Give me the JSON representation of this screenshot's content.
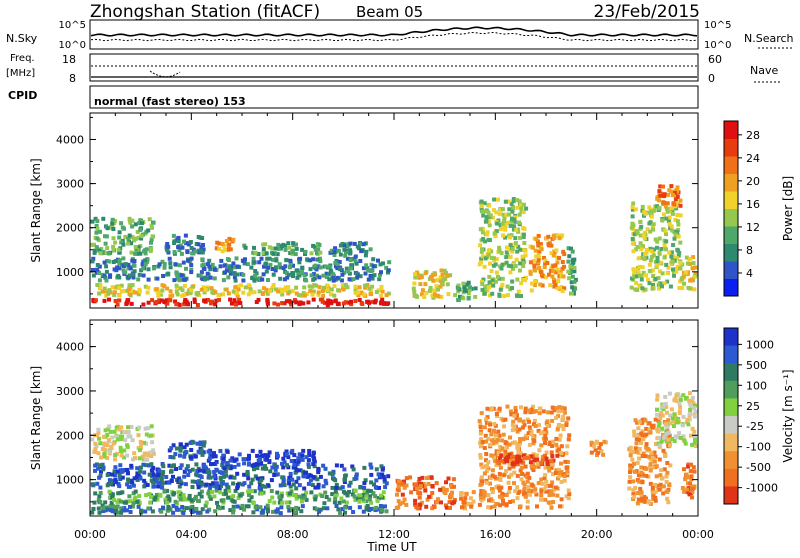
{
  "header": {
    "station": "Zhongshan Station (fitACF)",
    "beam": "Beam 05",
    "date": "23/Feb/2015"
  },
  "aux_panels": {
    "nsky_label": "N.Sky",
    "nsearch_label": "N.Search",
    "nsky_ticks": [
      "10^5",
      "10^0"
    ],
    "nsearch_ticks": [
      "10^5",
      "10^0"
    ],
    "freq_label_1": "Freq.",
    "freq_label_2": "[MHz]",
    "freq_ticks": [
      "18",
      "8"
    ],
    "nave_label": "Nave",
    "nave_ticks": [
      "60",
      "0"
    ],
    "cpid_label": "CPID",
    "cpid_text": "normal (fast stereo) 153"
  },
  "chart_data": [
    {
      "type": "heatmap",
      "title": "Power",
      "xlabel": "Time UT",
      "ylabel": "Slant Range [km]",
      "x_ticks": [
        "00:00",
        "04:00",
        "08:00",
        "12:00",
        "16:00",
        "20:00",
        "00:00"
      ],
      "y_ticks": [
        "1000",
        "2000",
        "3000",
        "4000"
      ],
      "xlim_hours": [
        0,
        24
      ],
      "ylim_km": [
        180,
        4600
      ],
      "colorbar": {
        "label": "Power [dB]",
        "ticks": [
          "4",
          "8",
          "12",
          "16",
          "20",
          "24",
          "28"
        ],
        "colors": [
          "#0a1ff0",
          "#2f54c8",
          "#2e8a6e",
          "#4fa86a",
          "#96c850",
          "#f0d22a",
          "#f0a020",
          "#f07018",
          "#e83c10",
          "#e01010"
        ]
      },
      "blobs": [
        {
          "t0": 0.0,
          "t1": 11.9,
          "r0": 200,
          "r1": 420,
          "level": 9
        },
        {
          "t0": 0.2,
          "t1": 11.9,
          "r0": 400,
          "r1": 750,
          "level": 5
        },
        {
          "t0": 0.0,
          "t1": 11.9,
          "r0": 750,
          "r1": 1350,
          "level": 2
        },
        {
          "t0": 0.0,
          "t1": 2.6,
          "r0": 1350,
          "r1": 2250,
          "level": 3
        },
        {
          "t0": 2.8,
          "t1": 4.6,
          "r0": 1350,
          "r1": 1900,
          "level": 2
        },
        {
          "t0": 4.9,
          "t1": 5.8,
          "r0": 1400,
          "r1": 1800,
          "level": 6
        },
        {
          "t0": 6.0,
          "t1": 9.2,
          "r0": 1350,
          "r1": 1700,
          "level": 3
        },
        {
          "t0": 9.3,
          "t1": 11.2,
          "r0": 1300,
          "r1": 1700,
          "level": 2
        },
        {
          "t0": 12.7,
          "t1": 14.3,
          "r0": 350,
          "r1": 1100,
          "level": 5
        },
        {
          "t0": 14.3,
          "t1": 15.4,
          "r0": 300,
          "r1": 800,
          "level": 3
        },
        {
          "t0": 15.3,
          "t1": 17.3,
          "r0": 400,
          "r1": 2700,
          "level": 4
        },
        {
          "t0": 17.3,
          "t1": 18.8,
          "r0": 500,
          "r1": 1900,
          "level": 6
        },
        {
          "t0": 18.8,
          "t1": 19.3,
          "r0": 400,
          "r1": 1600,
          "level": 3
        },
        {
          "t0": 21.3,
          "t1": 23.4,
          "r0": 500,
          "r1": 2600,
          "level": 4
        },
        {
          "t0": 22.3,
          "t1": 23.4,
          "r0": 2400,
          "r1": 3000,
          "level": 7
        },
        {
          "t0": 23.2,
          "t1": 24.0,
          "r0": 500,
          "r1": 1400,
          "level": 5
        }
      ]
    },
    {
      "type": "heatmap",
      "title": "Velocity",
      "xlabel": "Time UT",
      "ylabel": "Slant Range [km]",
      "x_ticks": [
        "00:00",
        "04:00",
        "08:00",
        "12:00",
        "16:00",
        "20:00",
        "00:00"
      ],
      "y_ticks": [
        "1000",
        "2000",
        "3000",
        "4000"
      ],
      "xlim_hours": [
        0,
        24
      ],
      "ylim_km": [
        180,
        4600
      ],
      "colorbar": {
        "label": "Velocity [m s⁻¹]",
        "ticks": [
          "1000",
          "500",
          "100",
          "25",
          "-25",
          "-100",
          "-500",
          "-1000"
        ],
        "colors": [
          "#1c32c8",
          "#2d5ad0",
          "#2e7a62",
          "#4f9e5c",
          "#80d040",
          "#c8ccc4",
          "#f0b860",
          "#f09030",
          "#f07020",
          "#e03418"
        ]
      },
      "blobs": [
        {
          "t0": 0.0,
          "t1": 11.8,
          "r0": 200,
          "r1": 460,
          "level": 2
        },
        {
          "t0": 0.0,
          "t1": 11.8,
          "r0": 420,
          "r1": 800,
          "level": 3
        },
        {
          "t0": 0.0,
          "t1": 11.9,
          "r0": 750,
          "r1": 1400,
          "level": 1
        },
        {
          "t0": 0.0,
          "t1": 2.6,
          "r0": 1400,
          "r1": 2250,
          "level": 5
        },
        {
          "t0": 3.0,
          "t1": 4.6,
          "r0": 1400,
          "r1": 1900,
          "level": 1
        },
        {
          "t0": 4.6,
          "t1": 9.0,
          "r0": 1300,
          "r1": 1700,
          "level": 0
        },
        {
          "t0": 12.0,
          "t1": 14.5,
          "r0": 300,
          "r1": 1100,
          "level": 8
        },
        {
          "t0": 14.5,
          "t1": 15.3,
          "r0": 300,
          "r1": 800,
          "level": 7
        },
        {
          "t0": 15.3,
          "t1": 19.0,
          "r0": 300,
          "r1": 2700,
          "level": 7
        },
        {
          "t0": 16.0,
          "t1": 18.8,
          "r0": 1300,
          "r1": 1600,
          "level": 9
        },
        {
          "t0": 19.7,
          "t1": 20.5,
          "r0": 1500,
          "r1": 1900,
          "level": 7
        },
        {
          "t0": 21.2,
          "t1": 23.0,
          "r0": 400,
          "r1": 2400,
          "level": 7
        },
        {
          "t0": 22.3,
          "t1": 24.0,
          "r0": 1700,
          "r1": 3000,
          "level": 5
        },
        {
          "t0": 23.3,
          "t1": 24.0,
          "r0": 500,
          "r1": 1400,
          "level": 8
        }
      ]
    }
  ]
}
